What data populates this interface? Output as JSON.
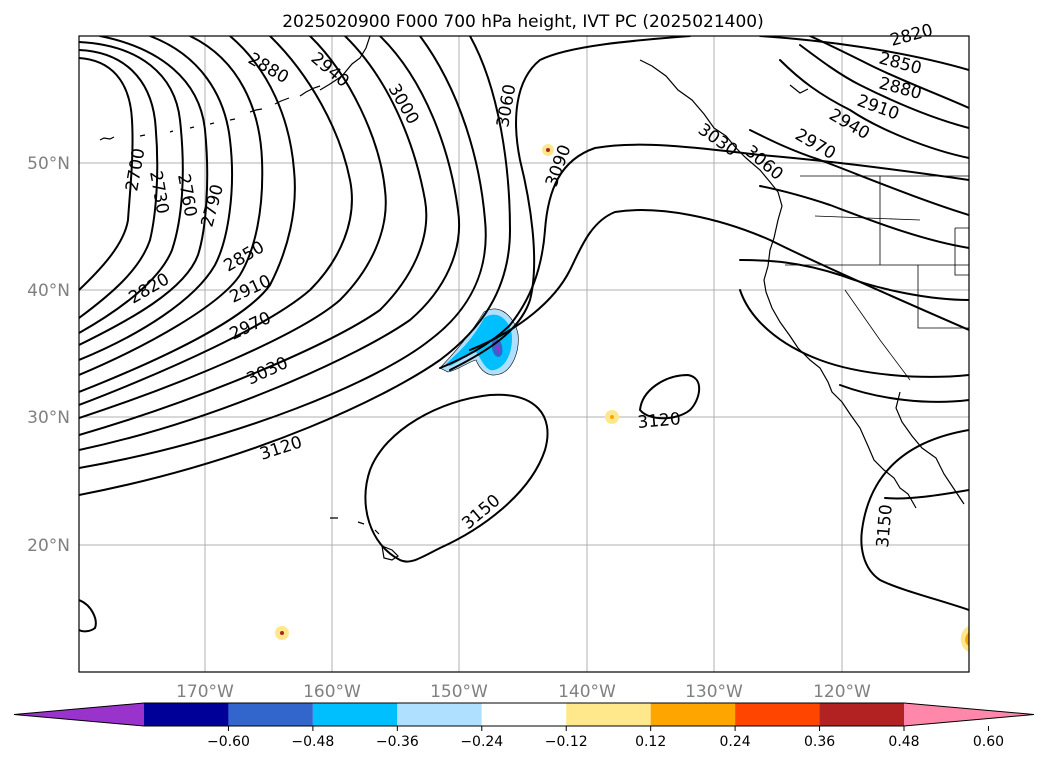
{
  "map": {
    "title": "2025020900 F000 700 hPa height, IVT PC (2025021400)",
    "lon_labels": [
      "170°W",
      "160°W",
      "150°W",
      "140°W",
      "130°W",
      "120°W"
    ],
    "lat_labels": [
      "50°N",
      "40°N",
      "30°N",
      "20°N"
    ],
    "contour_labels": [
      "2820",
      "2850",
      "2880",
      "2910",
      "2940",
      "2970",
      "3000",
      "3030",
      "3060",
      "3090",
      "3120",
      "3150",
      "2700",
      "2730",
      "2760",
      "2790"
    ]
  },
  "colorbar": {
    "colors": [
      "#9933cc",
      "#000099",
      "#3366cc",
      "#00bfff",
      "#b0e0ff",
      "#ffffff",
      "#ffe88c",
      "#ffa500",
      "#ff4500",
      "#b22222",
      "#ff88aa"
    ],
    "tick_labels": [
      "−0.60",
      "−0.48",
      "−0.36",
      "−0.24",
      "−0.12",
      "0.12",
      "0.24",
      "0.36",
      "0.48",
      "0.60"
    ]
  }
}
